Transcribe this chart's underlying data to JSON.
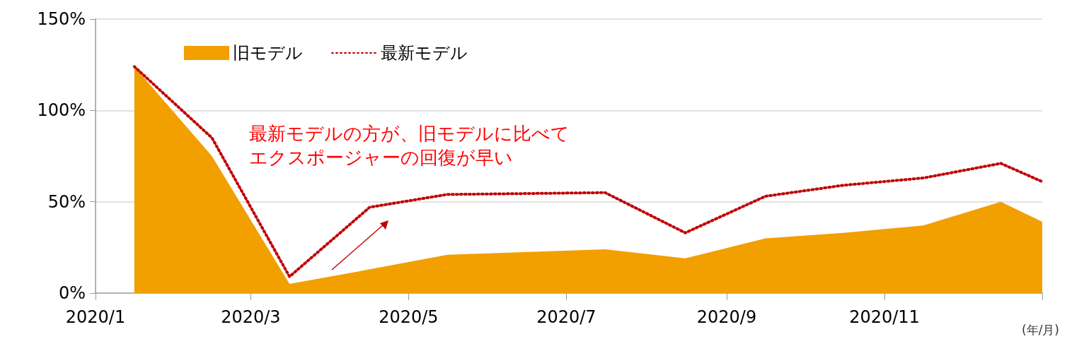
{
  "chart_data": {
    "type": "area",
    "xlabel": "(年/月)",
    "x": [
      "2020-01-16",
      "2020-02-15",
      "2020-03-16",
      "2020-04-16",
      "2020-05-16",
      "2020-06-16",
      "2020-07-16",
      "2020-08-16",
      "2020-09-16",
      "2020-10-16",
      "2020-11-16",
      "2020-12-16",
      "2021-01-01"
    ],
    "series": [
      {
        "name": "旧モデル",
        "color": "#f29f00",
        "values": [
          124,
          75,
          5,
          13,
          21,
          22.5,
          24,
          19,
          30,
          33,
          37,
          50,
          39
        ]
      },
      {
        "name": "最新モデル",
        "type": "line",
        "color": "#c00000",
        "line_style": "dotted",
        "values": [
          124,
          85,
          9,
          47,
          54,
          54.5,
          55,
          33,
          53,
          59,
          63,
          71,
          61
        ]
      }
    ],
    "xlim": [
      "2020-01-01",
      "2021-01-01"
    ],
    "xticks": [
      {
        "value": "2020-01-01",
        "label": "2020/1"
      },
      {
        "value": "2020-03-01",
        "label": "2020/3"
      },
      {
        "value": "2020-05-01",
        "label": "2020/5"
      },
      {
        "value": "2020-07-01",
        "label": "2020/7"
      },
      {
        "value": "2020-09-01",
        "label": "2020/9"
      },
      {
        "value": "2020-11-01",
        "label": "2020/11"
      },
      {
        "value": "2021-01-01",
        "label": null
      }
    ],
    "ylim": [
      0,
      150
    ],
    "yticks": [
      {
        "value": 0,
        "label": "0%"
      },
      {
        "value": 50,
        "label": "50%"
      },
      {
        "value": 100,
        "label": "100%"
      },
      {
        "value": 150,
        "label": "150%"
      }
    ],
    "grid": "y",
    "legend": "top left",
    "marker": "none",
    "annotations": [
      "最新モデルの方が、旧モデルに比べて",
      "エクスポージャーの回復が早い"
    ]
  }
}
